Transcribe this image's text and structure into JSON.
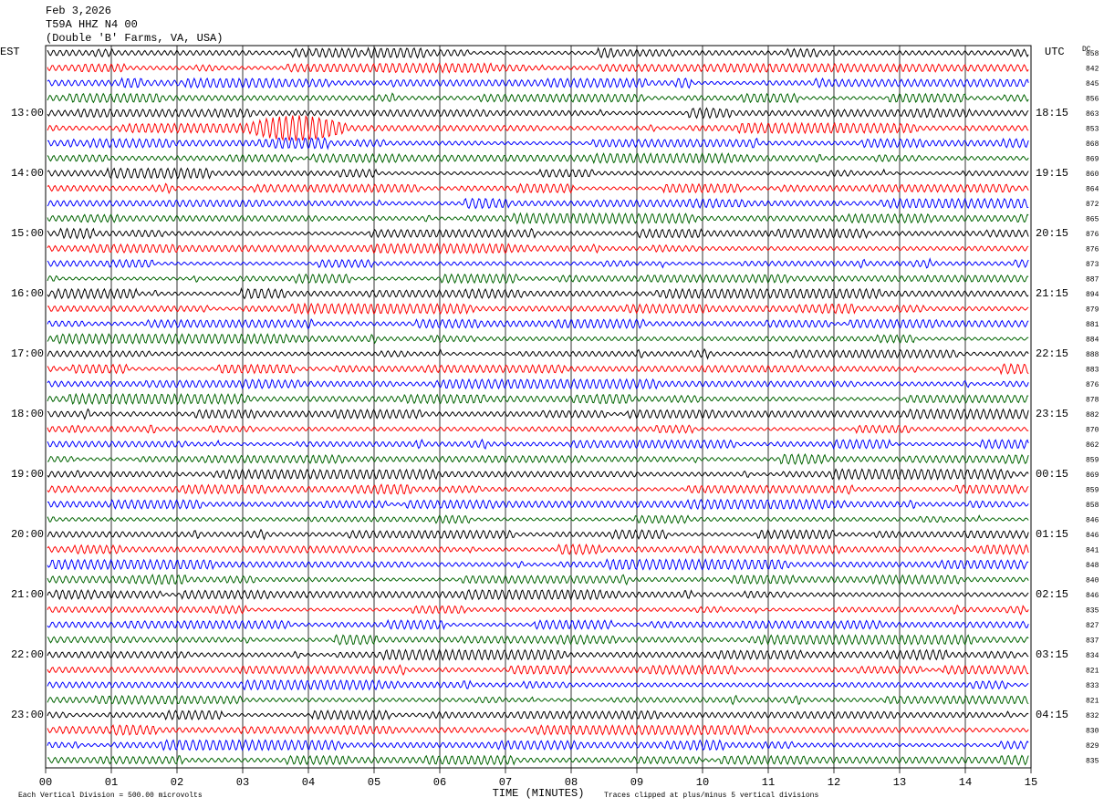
{
  "chart_data": {
    "type": "helicorder",
    "title_lines": [
      "Feb 3,2026",
      "T59A HHZ N4 00",
      "(Double 'B' Farms, VA, USA)"
    ],
    "left_axis_label": "EST",
    "right_axis_label": "UTC",
    "dc_label": "DC",
    "est_labels": [
      "13:00",
      "14:00",
      "15:00",
      "16:00",
      "17:00",
      "18:00",
      "19:00",
      "20:00",
      "21:00",
      "22:00",
      "23:00"
    ],
    "utc_labels": [
      "18:15",
      "19:15",
      "20:15",
      "21:15",
      "22:15",
      "23:15",
      "00:15",
      "01:15",
      "02:15",
      "03:15",
      "04:15"
    ],
    "dc_values": [
      858,
      842,
      845,
      856,
      863,
      853,
      868,
      869,
      860,
      864,
      872,
      865,
      876,
      876,
      873,
      887,
      894,
      879,
      881,
      884,
      888,
      883,
      876,
      878,
      882,
      870,
      862,
      859,
      869,
      859,
      858,
      846,
      846,
      841,
      848,
      840,
      846,
      835,
      827,
      837,
      834,
      821,
      833,
      821,
      832,
      830,
      829,
      835
    ],
    "trace_colors": [
      "#000000",
      "#ff0000",
      "#0000ff",
      "#006400"
    ],
    "xlabel": "TIME (MINUTES)",
    "xlim": [
      0,
      15
    ],
    "xticks": [
      {
        "value": 0,
        "label": "00"
      },
      {
        "value": 1,
        "label": "01"
      },
      {
        "value": 2,
        "label": "02"
      },
      {
        "value": 3,
        "label": "03"
      },
      {
        "value": 4,
        "label": "04"
      },
      {
        "value": 5,
        "label": "05"
      },
      {
        "value": 6,
        "label": "06"
      },
      {
        "value": 7,
        "label": "07"
      },
      {
        "value": 8,
        "label": "08"
      },
      {
        "value": 9,
        "label": "09"
      },
      {
        "value": 10,
        "label": "10"
      },
      {
        "value": 11,
        "label": "11"
      },
      {
        "value": 12,
        "label": "12"
      },
      {
        "value": 13,
        "label": "13"
      },
      {
        "value": 14,
        "label": "14"
      },
      {
        "value": 15,
        "label": "15"
      }
    ],
    "grid": true,
    "footnote_left": "Each Vertical Division =  500.00 microvolts",
    "footnote_right": "Traces clipped at plus/minus 5 vertical divisions"
  }
}
